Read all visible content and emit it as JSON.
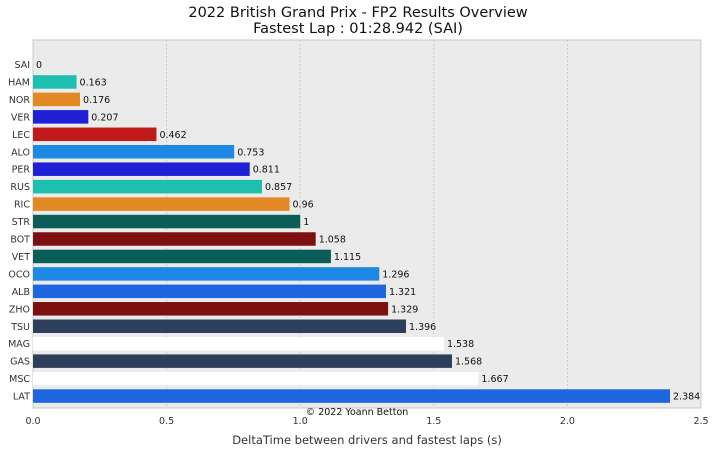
{
  "chart_data": {
    "type": "bar",
    "orientation": "horizontal",
    "title": "2022 British Grand Prix - FP2 Results Overview",
    "subtitle": "Fastest Lap : 01:28.942 (SAI)",
    "xlabel": "DeltaTime between drivers and fastest laps (s)",
    "ylabel": "",
    "xlim": [
      0,
      2.5
    ],
    "xticks": [
      "0.0",
      "0.5",
      "1.0",
      "1.5",
      "2.0",
      "2.5"
    ],
    "grid": true,
    "annotation": "© 2022 Yoann Betton",
    "categories": [
      "SAI",
      "HAM",
      "NOR",
      "VER",
      "LEC",
      "ALO",
      "PER",
      "RUS",
      "RIC",
      "STR",
      "BOT",
      "VET",
      "OCO",
      "ALB",
      "ZHO",
      "TSU",
      "MAG",
      "GAS",
      "MSC",
      "LAT"
    ],
    "values": [
      0,
      0.163,
      0.176,
      0.207,
      0.462,
      0.753,
      0.811,
      0.857,
      0.96,
      1,
      1.058,
      1.115,
      1.296,
      1.321,
      1.329,
      1.396,
      1.538,
      1.568,
      1.667,
      2.384
    ],
    "value_labels": [
      "0",
      "0.163",
      "0.176",
      "0.207",
      "0.462",
      "0.753",
      "0.811",
      "0.857",
      "0.96",
      "1",
      "1.058",
      "1.115",
      "1.296",
      "1.321",
      "1.329",
      "1.396",
      "1.538",
      "1.568",
      "1.667",
      "2.384"
    ],
    "colors": [
      "#ed1c24",
      "#1dbfae",
      "#e28824",
      "#1f1fd6",
      "#c11a1a",
      "#1e88e5",
      "#1f1fd6",
      "#1dbfae",
      "#e28824",
      "#0b5e58",
      "#7c0f0f",
      "#0b5e58",
      "#1e88e5",
      "#1e66e0",
      "#7c0f0f",
      "#2e3f5c",
      "#ffffff",
      "#2e3f5c",
      "#ffffff",
      "#1e66e0"
    ]
  }
}
